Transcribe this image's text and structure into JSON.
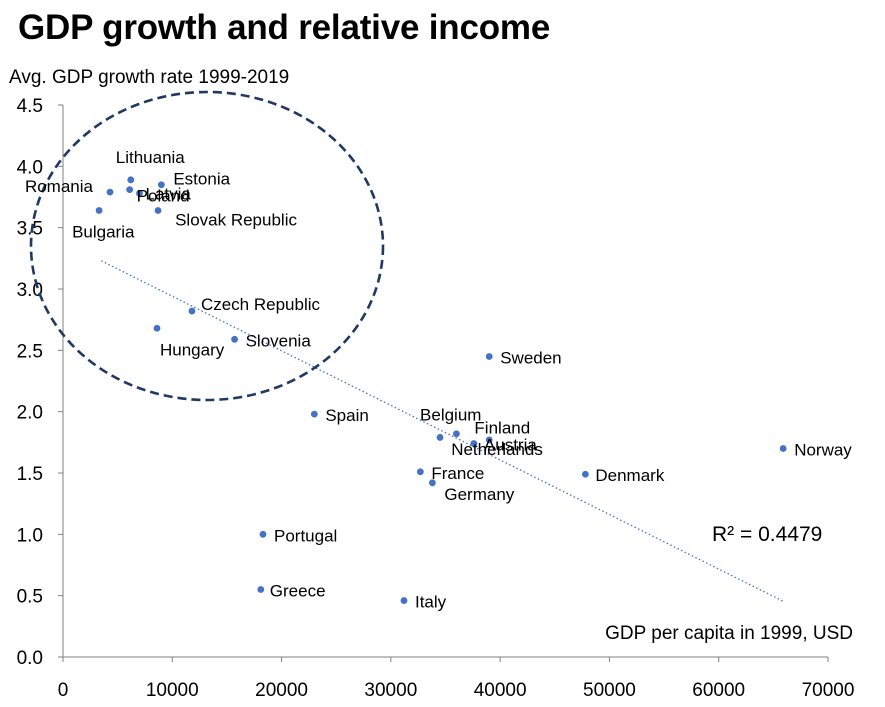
{
  "title": "GDP growth and relative income",
  "chart_data": {
    "type": "scatter",
    "ylabel": "Avg. GDP growth rate 1999-2019",
    "xlabel": "GDP per capita in 1999, USD",
    "xlim": [
      0,
      70000
    ],
    "ylim": [
      0,
      4.5
    ],
    "xticks": [
      "0",
      "10000",
      "20000",
      "30000",
      "40000",
      "50000",
      "60000",
      "70000"
    ],
    "yticks": [
      "0.0",
      "0.5",
      "1.0",
      "1.5",
      "2.0",
      "2.5",
      "3.0",
      "3.5",
      "4.0",
      "4.5"
    ],
    "grid": false,
    "marker_color": "#4472c4",
    "trendline": {
      "style": "dotted",
      "color": "#4472c4",
      "x": [
        3500,
        66000
      ],
      "y": [
        3.23,
        0.45
      ]
    },
    "r_squared_label": "R² = 0.4479",
    "highlight": {
      "shape": "ellipse",
      "style": "dashed",
      "color": "#1f3864"
    },
    "points": [
      {
        "label": "Lithuania",
        "x": 6200,
        "y": 3.89
      },
      {
        "label": "Estonia",
        "x": 9000,
        "y": 3.85
      },
      {
        "label": "Romania",
        "x": 4300,
        "y": 3.79
      },
      {
        "label": "Latvia",
        "x": 7000,
        "y": 3.78
      },
      {
        "label": "Poland",
        "x": 6100,
        "y": 3.81
      },
      {
        "label": "Bulgaria",
        "x": 3300,
        "y": 3.64
      },
      {
        "label": "Slovak Republic",
        "x": 8700,
        "y": 3.64
      },
      {
        "label": "Czech Republic",
        "x": 11800,
        "y": 2.82
      },
      {
        "label": "Hungary",
        "x": 8600,
        "y": 2.68
      },
      {
        "label": "Slovenia",
        "x": 15700,
        "y": 2.59
      },
      {
        "label": "Sweden",
        "x": 39000,
        "y": 2.45
      },
      {
        "label": "Spain",
        "x": 23000,
        "y": 1.98
      },
      {
        "label": "Belgium",
        "x": 34500,
        "y": 1.79
      },
      {
        "label": "Finland",
        "x": 36000,
        "y": 1.82
      },
      {
        "label": "Austria",
        "x": 37600,
        "y": 1.74
      },
      {
        "label": "Norway",
        "x": 65900,
        "y": 1.7
      },
      {
        "label": "Netherlands",
        "x": 39000,
        "y": 1.77
      },
      {
        "label": "Denmark",
        "x": 47800,
        "y": 1.49
      },
      {
        "label": "France",
        "x": 32700,
        "y": 1.51
      },
      {
        "label": "Germany",
        "x": 33800,
        "y": 1.42
      },
      {
        "label": "Portugal",
        "x": 18300,
        "y": 1.0
      },
      {
        "label": "Greece",
        "x": 18100,
        "y": 0.55
      },
      {
        "label": "Italy",
        "x": 31200,
        "y": 0.46
      }
    ]
  }
}
